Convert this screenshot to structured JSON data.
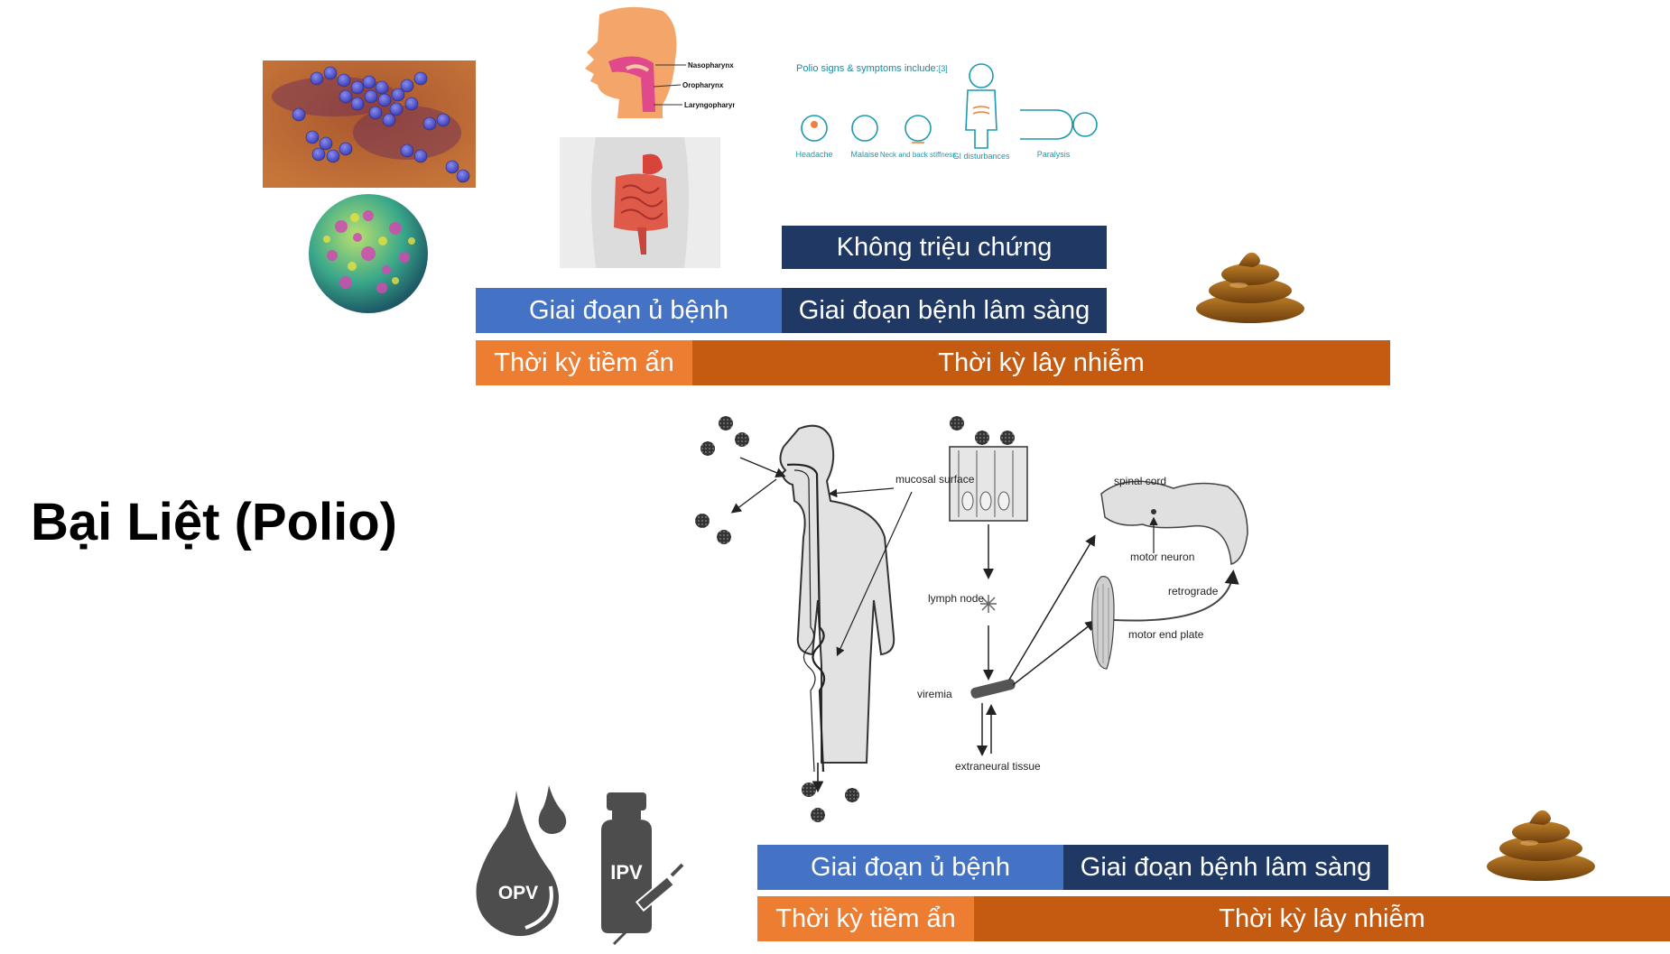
{
  "title": "Bại Liệt (Polio)",
  "top_timeline": {
    "asymptomatic": "Không triệu chứng",
    "incubation_stage": "Giai đoạn ủ bệnh",
    "clinical_stage": "Giai đoạn bệnh lâm sàng",
    "latent_period": "Thời kỳ tiềm ẩn",
    "infectious_period": "Thời kỳ lây nhiễm"
  },
  "bottom_timeline": {
    "incubation_stage": "Giai đoạn ủ bệnh",
    "clinical_stage": "Giai đoạn bệnh lâm sàng",
    "latent_period": "Thời kỳ tiềm ẩn",
    "infectious_period": "Thời kỳ lây nhiễm"
  },
  "symptoms": {
    "heading": "Polio signs & symptoms include:",
    "ref": "[3]",
    "items": [
      "Headache",
      "Malaise",
      "Neck and back stiffness",
      "GI disturbances",
      "Paralysis"
    ]
  },
  "throat_labels": [
    "Nasopharynx",
    "Oropharynx",
    "Laryngopharynx"
  ],
  "pathway_labels": {
    "mucosal_surface": "mucosal surface",
    "lymph_node": "lymph node",
    "viremia": "viremia",
    "extraneural_tissue": "extraneural tissue",
    "spinal_cord": "spinal cord",
    "motor_neuron": "motor neuron",
    "retrograde": "retrograde",
    "motor_end_plate": "motor end plate"
  },
  "vaccines": {
    "oral": "OPV",
    "inactivated": "IPV"
  },
  "colors": {
    "blue_stage": "#4472c4",
    "dark_navy": "#203864",
    "light_orange": "#ed7d31",
    "dark_orange": "#c55a11"
  }
}
